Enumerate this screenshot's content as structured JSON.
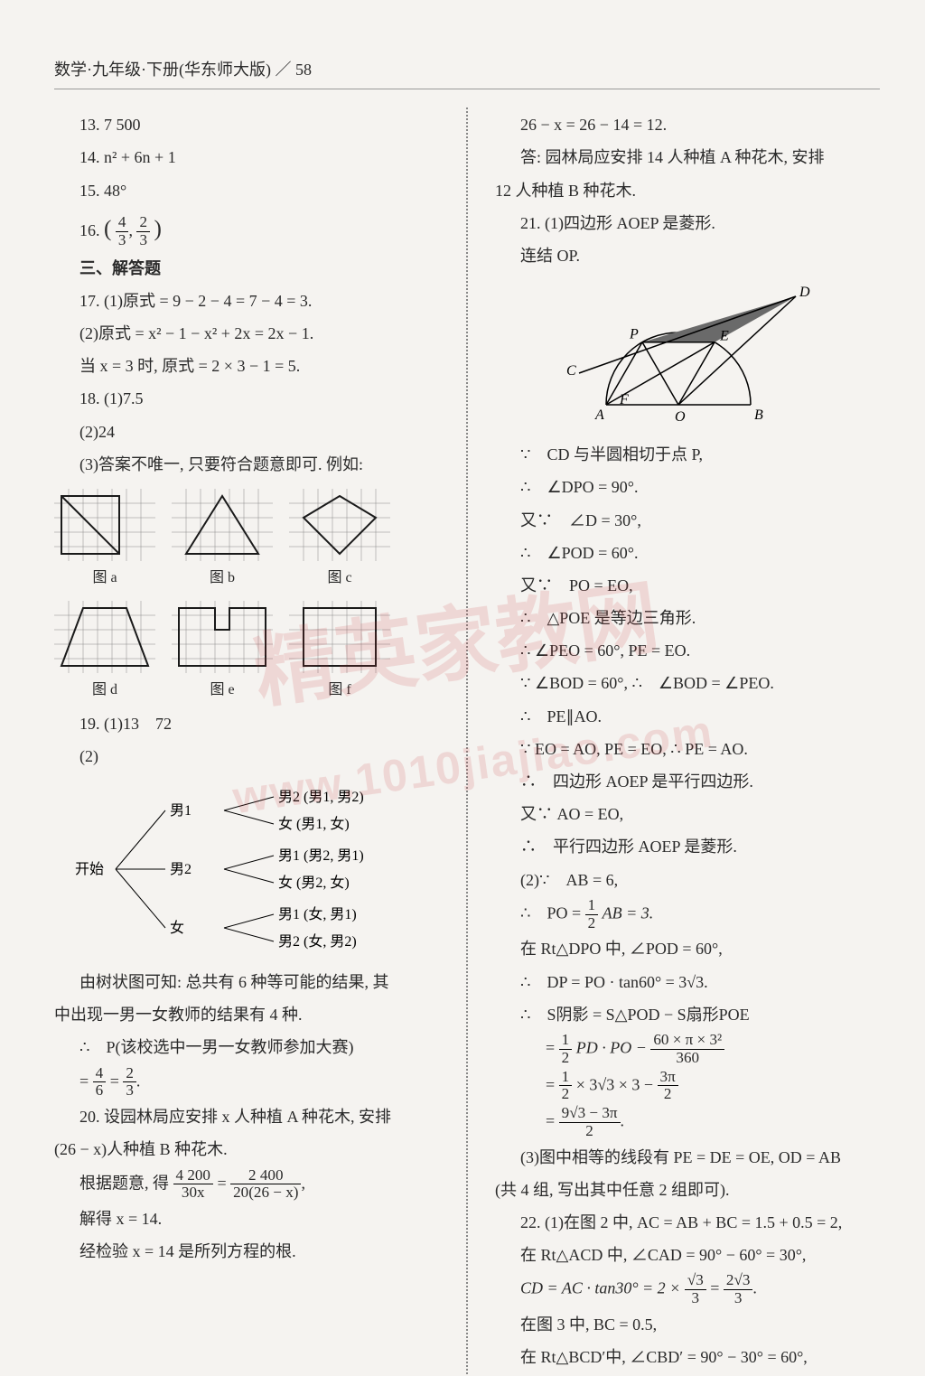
{
  "header": {
    "text": "数学·九年级·下册(华东师大版) ／ 58"
  },
  "left": {
    "q13": "13. 7 500",
    "q14": "14. n² + 6n + 1",
    "q15": "15. 48°",
    "q16_label": "16.",
    "q16_frac1_num": "4",
    "q16_frac1_den": "3",
    "q16_frac2_num": "2",
    "q16_frac2_den": "3",
    "section3": "三、解答题",
    "q17_1": "17. (1)原式 = 9 − 2 − 4 = 7 − 4 = 3.",
    "q17_2": "(2)原式 = x² − 1 − x² + 2x = 2x − 1.",
    "q17_2b": "当 x = 3 时, 原式 = 2 × 3 − 1 = 5.",
    "q18_1": "18. (1)7.5",
    "q18_2": "(2)24",
    "q18_3": "(3)答案不唯一, 只要符合题意即可. 例如:",
    "fig_caps_row1": [
      "图 a",
      "图 b",
      "图 c"
    ],
    "fig_caps_row2": [
      "图 d",
      "图 e",
      "图 f"
    ],
    "q19_1": "19. (1)13　72",
    "q19_2": "(2)",
    "tree": {
      "start": "开始",
      "b1": "男1",
      "b2": "男2",
      "g": "女",
      "r11": "男2 (男1, 男2)",
      "r12": "女 (男1, 女)",
      "r21": "男1 (男2, 男1)",
      "r22": "女 (男2, 女)",
      "r31": "男1 (女, 男1)",
      "r32": "男2 (女, 男2)"
    },
    "q19_t1": "由树状图可知: 总共有 6 种等可能的结果, 其",
    "q19_t2": "中出现一男一女教师的结果有 4 种.",
    "q19_t3": "∴　P(该校选中一男一女教师参加大赛)",
    "q19_t4a_num": "4",
    "q19_t4a_den": "6",
    "q19_t4b_num": "2",
    "q19_t4b_den": "3",
    "q20_1": "20. 设园林局应安排 x 人种植 A 种花木, 安排",
    "q20_2": "(26 − x)人种植 B 种花木.",
    "q20_3_pre": "根据题意, 得",
    "q20_3_f1_num": "4 200",
    "q20_3_f1_den": "30x",
    "q20_3_f2_num": "2 400",
    "q20_3_f2_den": "20(26 − x)",
    "q20_4": "解得 x = 14.",
    "q20_5": "经检验 x = 14 是所列方程的根."
  },
  "right": {
    "r0": "26 − x = 26 − 14 = 12.",
    "r1": "答: 园林局应安排 14 人种植 A 种花木, 安排",
    "r2": "12 人种植 B 种花木.",
    "q21_1": "21. (1)四边形 AOEP 是菱形.",
    "q21_2": "连结 OP.",
    "geom": {
      "labels": {
        "A": "A",
        "B": "B",
        "C": "C",
        "D": "D",
        "E": "E",
        "F": "F",
        "O": "O",
        "P": "P"
      },
      "fill": "#6a6a6a"
    },
    "p_lines": [
      "∵　CD 与半圆相切于点 P,",
      "∴　∠DPO = 90°.",
      "又∵　∠D = 30°,",
      "∴　∠POD = 60°.",
      "又∵　PO = EO,",
      "∴　△POE 是等边三角形.",
      "∴ ∠PEO = 60°, PE = EO.",
      "∵ ∠BOD = 60°, ∴　∠BOD = ∠PEO.",
      "∴　PE∥AO.",
      "∵ EO = AO, PE = EO, ∴ PE = AO.",
      "∴　四边形 AOEP 是平行四边形.",
      "又∵ AO = EO,",
      "∴　平行四边形 AOEP 是菱形."
    ],
    "q21_2h": "(2)∵　AB = 6,",
    "q21_po_pre": "∴　PO =",
    "q21_po_num": "1",
    "q21_po_den": "2",
    "q21_po_post": "AB = 3.",
    "q21_rt": "在 Rt△DPO 中, ∠POD = 60°,",
    "q21_dp": "∴　DP = PO · tan60° = 3√3.",
    "q21_s_pre": "∴　S阴影 = S△POD − S扇形POE",
    "q21_s1_num": "1",
    "q21_s1_den": "2",
    "q21_s1_mid": "PD · PO −",
    "q21_s1b_num": "60 × π × 3²",
    "q21_s1b_den": "360",
    "q21_s2_num": "1",
    "q21_s2_den": "2",
    "q21_s2_mid": " × 3√3 × 3 −",
    "q21_s2b_num": "3π",
    "q21_s2b_den": "2",
    "q21_s3_num": "9√3 − 3π",
    "q21_s3_den": "2",
    "q21_3a": "(3)图中相等的线段有 PE = DE = OE, OD = AB",
    "q21_3b": "(共 4 组, 写出其中任意 2 组即可).",
    "q22_1": "22. (1)在图 2 中, AC = AB + BC = 1.5 + 0.5 = 2,",
    "q22_2": "在 Rt△ACD 中, ∠CAD = 90° − 60° = 30°,",
    "q22_cd_pre": "CD = AC · tan30° = 2 ×",
    "q22_cd_f1_num": "√3",
    "q22_cd_f1_den": "3",
    "q22_cd_f2_num": "2√3",
    "q22_cd_f2_den": "3",
    "q22_3": "在图 3 中, BC = 0.5,",
    "q22_4": "在 Rt△BCD′中, ∠CBD′ = 90° − 30° = 60°,"
  },
  "grid_style": {
    "cell": 16,
    "cols": 7,
    "rows": 5,
    "stroke": "#888",
    "shape_stroke": "#1a1a1a"
  },
  "watermark": {
    "big": "精英家教网",
    "url": "www.1010jiajiao.com"
  }
}
